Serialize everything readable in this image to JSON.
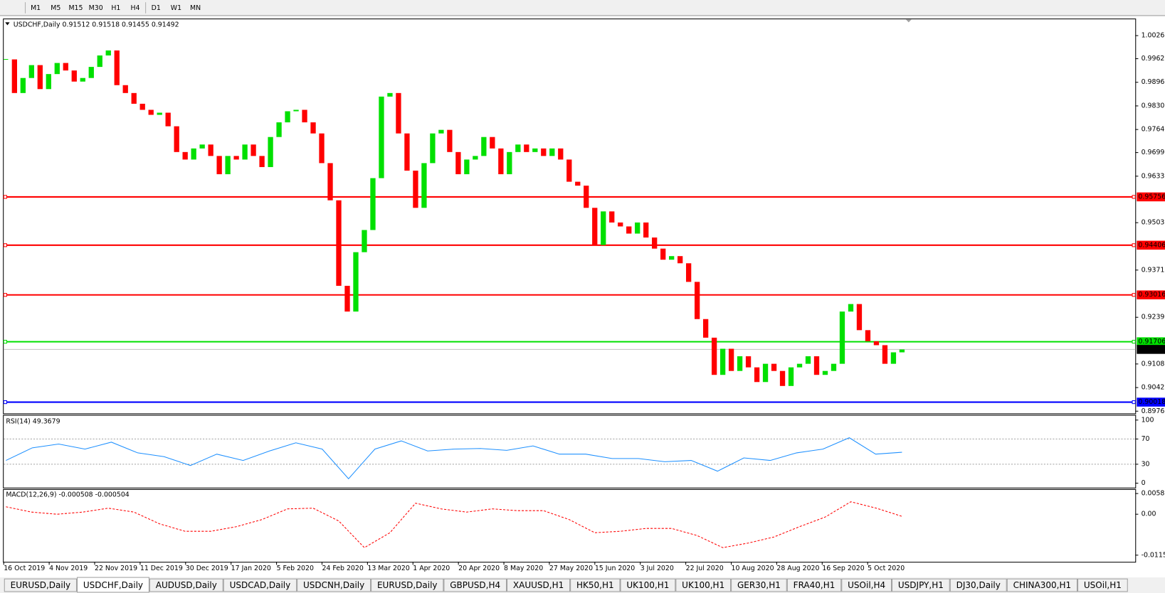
{
  "toolbar": {
    "timeframes": [
      "M1",
      "M5",
      "M15",
      "M30",
      "H1",
      "H4",
      "D1",
      "W1",
      "MN"
    ]
  },
  "chart": {
    "symbol": "USDCHF,Daily",
    "ohlc": [
      0.91512,
      0.91518,
      0.91455,
      0.91492
    ],
    "ylim": [
      0.89703,
      1.00742
    ],
    "yticks": [
      1.00265,
      {
        "value": 0.9962,
        "label": "0.99620"
      },
      {
        "value": 0.9896,
        "label": "0.98960"
      },
      {
        "value": 0.983,
        "label": "0.98300"
      },
      {
        "value": 0.9764,
        "label": "0.97640"
      },
      0.96995,
      0.96335,
      0.95035,
      {
        "value": 0.9371,
        "label": "0.93710"
      },
      {
        "value": 0.9239,
        "label": "0.92390"
      },
      0.91085,
      0.90425,
      0.89765
    ],
    "levels": [
      {
        "value": 0.95756,
        "color": "#ff0000"
      },
      {
        "value": 0.94406,
        "color": "#ff0000"
      },
      {
        "value": 0.93016,
        "color": "#ff0000"
      },
      {
        "value": 0.91706,
        "color": "#00e000"
      },
      {
        "value": 0.90018,
        "color": "#0000ff"
      }
    ],
    "current": 0.91492,
    "up_color": "#00e000",
    "down_color": "#ff0000",
    "closes": [
      0.996,
      0.9866,
      0.9908,
      0.9944,
      0.9877,
      0.9919,
      0.995,
      0.9929,
      0.9898,
      0.9908,
      0.9939,
      0.9971,
      0.9985,
      0.9888,
      0.9866,
      0.9836,
      0.9819,
      0.9805,
      0.9811,
      0.9773,
      0.9701,
      0.968,
      0.9711,
      0.9722,
      0.969,
      0.9639,
      0.969,
      0.968,
      0.9722,
      0.969,
      0.9659,
      0.9743,
      0.9784,
      0.9815,
      0.9819,
      0.9784,
      0.9753,
      0.967,
      0.9566,
      0.9327,
      0.9255,
      0.9421,
      0.9483,
      0.9628,
      0.9856,
      0.9866,
      0.9753,
      0.9649,
      0.9545,
      0.967,
      0.9753,
      0.9763,
      0.9701,
      0.9639,
      0.968,
      0.969,
      0.9743,
      0.9711,
      0.9639,
      0.9701,
      0.9722,
      0.9701,
      0.9711,
      0.969,
      0.9711,
      0.968,
      0.9618,
      0.9607,
      0.9545,
      0.9441,
      0.9535,
      0.9504,
      0.9493,
      0.9473,
      0.9504,
      0.9462,
      0.9431,
      0.94,
      0.941,
      0.939,
      0.9338,
      0.9234,
      0.9182,
      0.9078,
      0.9151,
      0.9089,
      0.913,
      0.9099,
      0.9058,
      0.9109,
      0.9089,
      0.9047,
      0.9099,
      0.9109,
      0.913,
      0.9078,
      0.9089,
      0.9109,
      0.9255,
      0.9276,
      0.9203,
      0.9172,
      0.9161,
      0.9109,
      0.9141,
      0.9149
    ]
  },
  "rsi": {
    "label": "RSI(14) 49.3679",
    "ylim": [
      0,
      100
    ],
    "yticks": [
      100,
      70,
      30,
      0
    ],
    "color": "#1e90ff",
    "values": [
      36,
      56,
      62,
      54,
      65,
      48,
      42,
      28,
      46,
      36,
      51,
      64,
      54,
      7,
      54,
      67,
      51,
      54,
      55,
      52,
      59,
      46,
      46,
      39,
      39,
      34,
      36,
      19,
      40,
      36,
      48,
      54,
      72,
      46,
      49
    ]
  },
  "macd": {
    "label": "MACD(12,26,9) -0.000508 -0.000504",
    "ylim": [
      -0.01339,
      0.00665
    ],
    "yticks": [
      0.005818,
      {
        "value": 0,
        "label": "0.00"
      },
      -0.011515
    ],
    "color": "#ff0000",
    "signal": [
      0.0021,
      0.0006,
      0,
      0.0006,
      0.0017,
      0.0006,
      -0.0027,
      -0.0048,
      -0.0048,
      -0.0035,
      -0.0015,
      0.0015,
      0.0017,
      -0.0019,
      -0.0094,
      -0.0052,
      0.0031,
      0.0015,
      0.0006,
      0.0015,
      0.001,
      0.001,
      -0.0015,
      -0.0052,
      -0.0048,
      -0.004,
      -0.004,
      -0.006,
      -0.0094,
      -0.0081,
      -0.0064,
      -0.0035,
      -0.0008,
      0.0035,
      0.0017,
      -0.0006
    ]
  },
  "dates": [
    "16 Oct 2019",
    "4 Nov 2019",
    "22 Nov 2019",
    "11 Dec 2019",
    "30 Dec 2019",
    "17 Jan 2020",
    "5 Feb 2020",
    "24 Feb 2020",
    "13 Mar 2020",
    "1 Apr 2020",
    "20 Apr 2020",
    "8 May 2020",
    "27 May 2020",
    "15 Jun 2020",
    "3 Jul 2020",
    "22 Jul 2020",
    "10 Aug 2020",
    "28 Aug 2020",
    "16 Sep 2020",
    "5 Oct 2020"
  ],
  "tabs": {
    "active": 1,
    "items": [
      "EURUSD,Daily",
      "USDCHF,Daily",
      "AUDUSD,Daily",
      "USDCAD,Daily",
      "USDCNH,Daily",
      "EURUSD,Daily",
      "GBPUSD,H4",
      "XAUUSD,H1",
      "HK50,H1",
      "UK100,H1",
      "UK100,H1",
      "GER30,H1",
      "FRA40,H1",
      "USOil,H4",
      "USDJPY,H1",
      "DJ30,Daily",
      "CHINA300,H1",
      "USOil,H1"
    ]
  }
}
